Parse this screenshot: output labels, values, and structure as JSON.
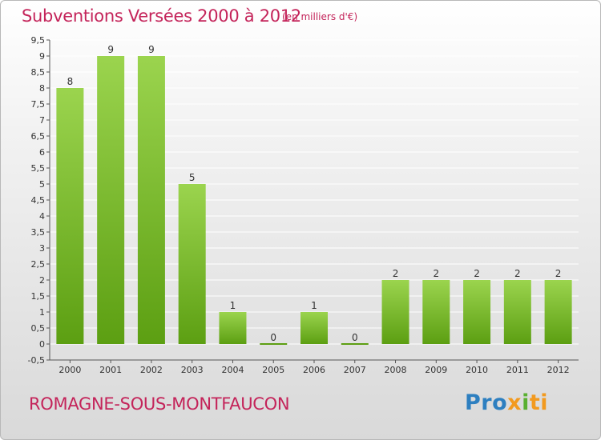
{
  "header": {
    "title": "Subventions Versées 2000 à 2012",
    "subtitle": "(en milliers d'€)"
  },
  "footer": {
    "commune": "ROMAGNE-SOUS-MONTFAUCON",
    "logo_parts": [
      "Pro",
      "x",
      "i",
      "ti"
    ]
  },
  "colors": {
    "title": "#c4245a",
    "bar_top": "#9bd44e",
    "bar_bottom": "#5c9f12",
    "grid": "#ffffff",
    "axis_text": "#333333"
  },
  "chart_data": {
    "type": "bar",
    "categories": [
      "2000",
      "2001",
      "2002",
      "2003",
      "2004",
      "2005",
      "2006",
      "2007",
      "2008",
      "2009",
      "2010",
      "2011",
      "2012"
    ],
    "values": [
      8,
      9,
      9,
      5,
      1,
      0,
      1,
      0,
      2,
      2,
      2,
      2,
      2
    ],
    "data_labels": [
      "8",
      "9",
      "9",
      "5",
      "1",
      "0",
      "1",
      "0",
      "2",
      "2",
      "2",
      "2",
      "2"
    ],
    "ylim": [
      -0.5,
      9.5
    ],
    "yticks": [
      -0.5,
      0,
      0.5,
      1,
      1.5,
      2,
      2.5,
      3,
      3.5,
      4,
      4.5,
      5,
      5.5,
      6,
      6.5,
      7,
      7.5,
      8,
      8.5,
      9,
      9.5
    ],
    "ytick_labels": [
      "-0,5",
      "0",
      "0,5",
      "1",
      "1,5",
      "2",
      "2,5",
      "3",
      "3,5",
      "4",
      "4,5",
      "5",
      "5,5",
      "6",
      "6,5",
      "7",
      "7,5",
      "8",
      "8,5",
      "9",
      "9,5"
    ],
    "grid": true,
    "xlabel": "",
    "ylabel": ""
  }
}
